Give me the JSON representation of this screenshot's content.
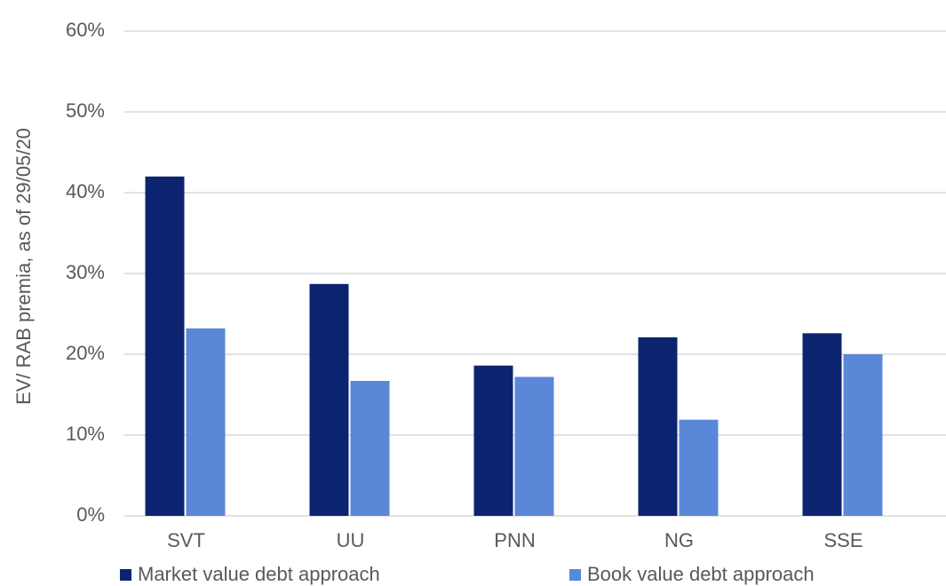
{
  "chart_data": {
    "type": "bar",
    "y_label": "EV/ RAB premia, as of 29/05/20",
    "categories": [
      "SVT",
      "UU",
      "PNN",
      "NG",
      "SSE"
    ],
    "series": [
      {
        "name": "Market value debt approach",
        "color": "#0c2470",
        "values": [
          42,
          28.7,
          18.6,
          22.1,
          22.6
        ]
      },
      {
        "name": "Book value debt approach",
        "color": "#5b87d8",
        "values": [
          23.2,
          16.7,
          17.2,
          11.9,
          20.0
        ]
      }
    ],
    "ylim": [
      0,
      60
    ],
    "yticks": [
      {
        "value": 0,
        "label": "0%"
      },
      {
        "value": 10,
        "label": "10%"
      },
      {
        "value": 20,
        "label": "20%"
      },
      {
        "value": 30,
        "label": "30%"
      },
      {
        "value": 40,
        "label": "40%"
      },
      {
        "value": 50,
        "label": "50%"
      },
      {
        "value": 60,
        "label": "60%"
      }
    ],
    "grid": true,
    "legend": "bottom"
  }
}
